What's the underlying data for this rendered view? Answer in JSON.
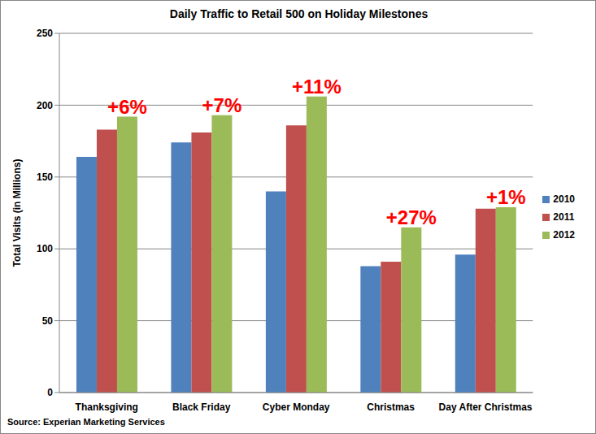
{
  "chart_data": {
    "type": "bar",
    "title": "Daily Traffic to Retail 500 on Holiday Milestones",
    "y_label": "Total Visits (in Millions)",
    "source": "Source: Experian Marketing Services",
    "categories": [
      "Thanksgiving",
      "Black Friday",
      "Cyber Monday",
      "Christmas",
      "Day After Christmas"
    ],
    "series": [
      {
        "name": "2010",
        "color": "#4F81BD",
        "values": [
          164,
          174,
          140,
          88,
          96
        ]
      },
      {
        "name": "2011",
        "color": "#C0504D",
        "values": [
          183,
          181,
          186,
          91,
          128
        ]
      },
      {
        "name": "2012",
        "color": "#9BBB59",
        "values": [
          192,
          193,
          206,
          115,
          129
        ],
        "annotations": [
          "+6%",
          "+7%",
          "+11%",
          "+27%",
          "+1%"
        ]
      }
    ],
    "ylim": [
      0,
      250
    ],
    "yticks": [
      0,
      50,
      100,
      150,
      200,
      250
    ],
    "grid": true,
    "legend": "right"
  }
}
